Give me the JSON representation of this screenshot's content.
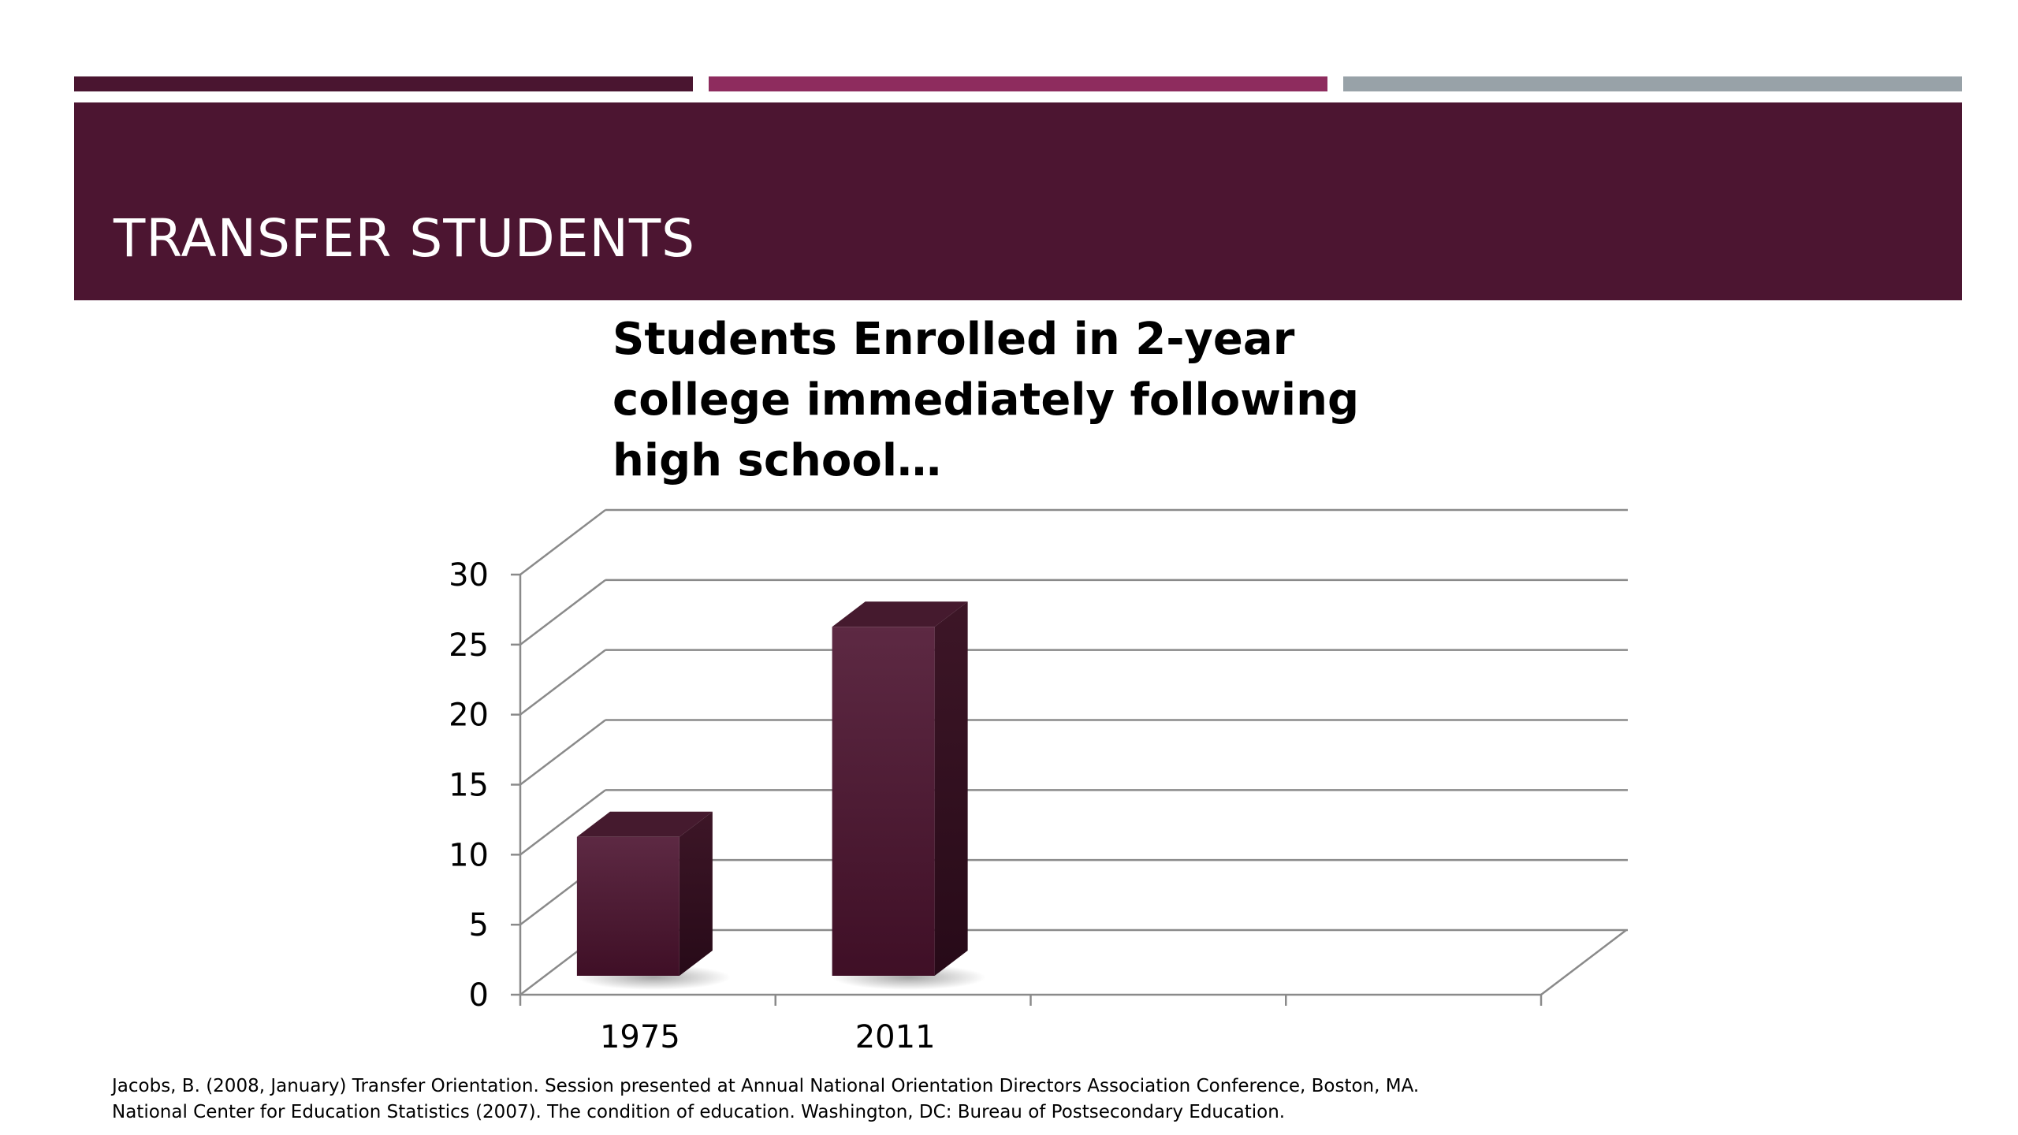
{
  "slide": {
    "title": "TRANSFER STUDENTS",
    "accent_colors": [
      "#4a1530",
      "#8e2c5e",
      "#98a2a8"
    ],
    "band_color": "#4c1531"
  },
  "chart_data": {
    "type": "bar",
    "title": "Students Enrolled in 2-year college immediately following high school…",
    "categories": [
      "1975",
      "2011"
    ],
    "values": [
      11,
      26
    ],
    "ylim": [
      0,
      30
    ],
    "yticks": [
      "0",
      "5",
      "10",
      "15",
      "20",
      "25",
      "30"
    ],
    "grid": true,
    "style": "3d-column",
    "bar_color": "#4e1a36",
    "xlabel": "",
    "ylabel": ""
  },
  "footnotes": [
    "Jacobs, B. (2008, January) Transfer Orientation. Session presented at Annual National Orientation Directors Association Conference, Boston, MA.",
    "National Center for Education Statistics (2007). The condition of education. Washington, DC: Bureau of Postsecondary Education."
  ]
}
